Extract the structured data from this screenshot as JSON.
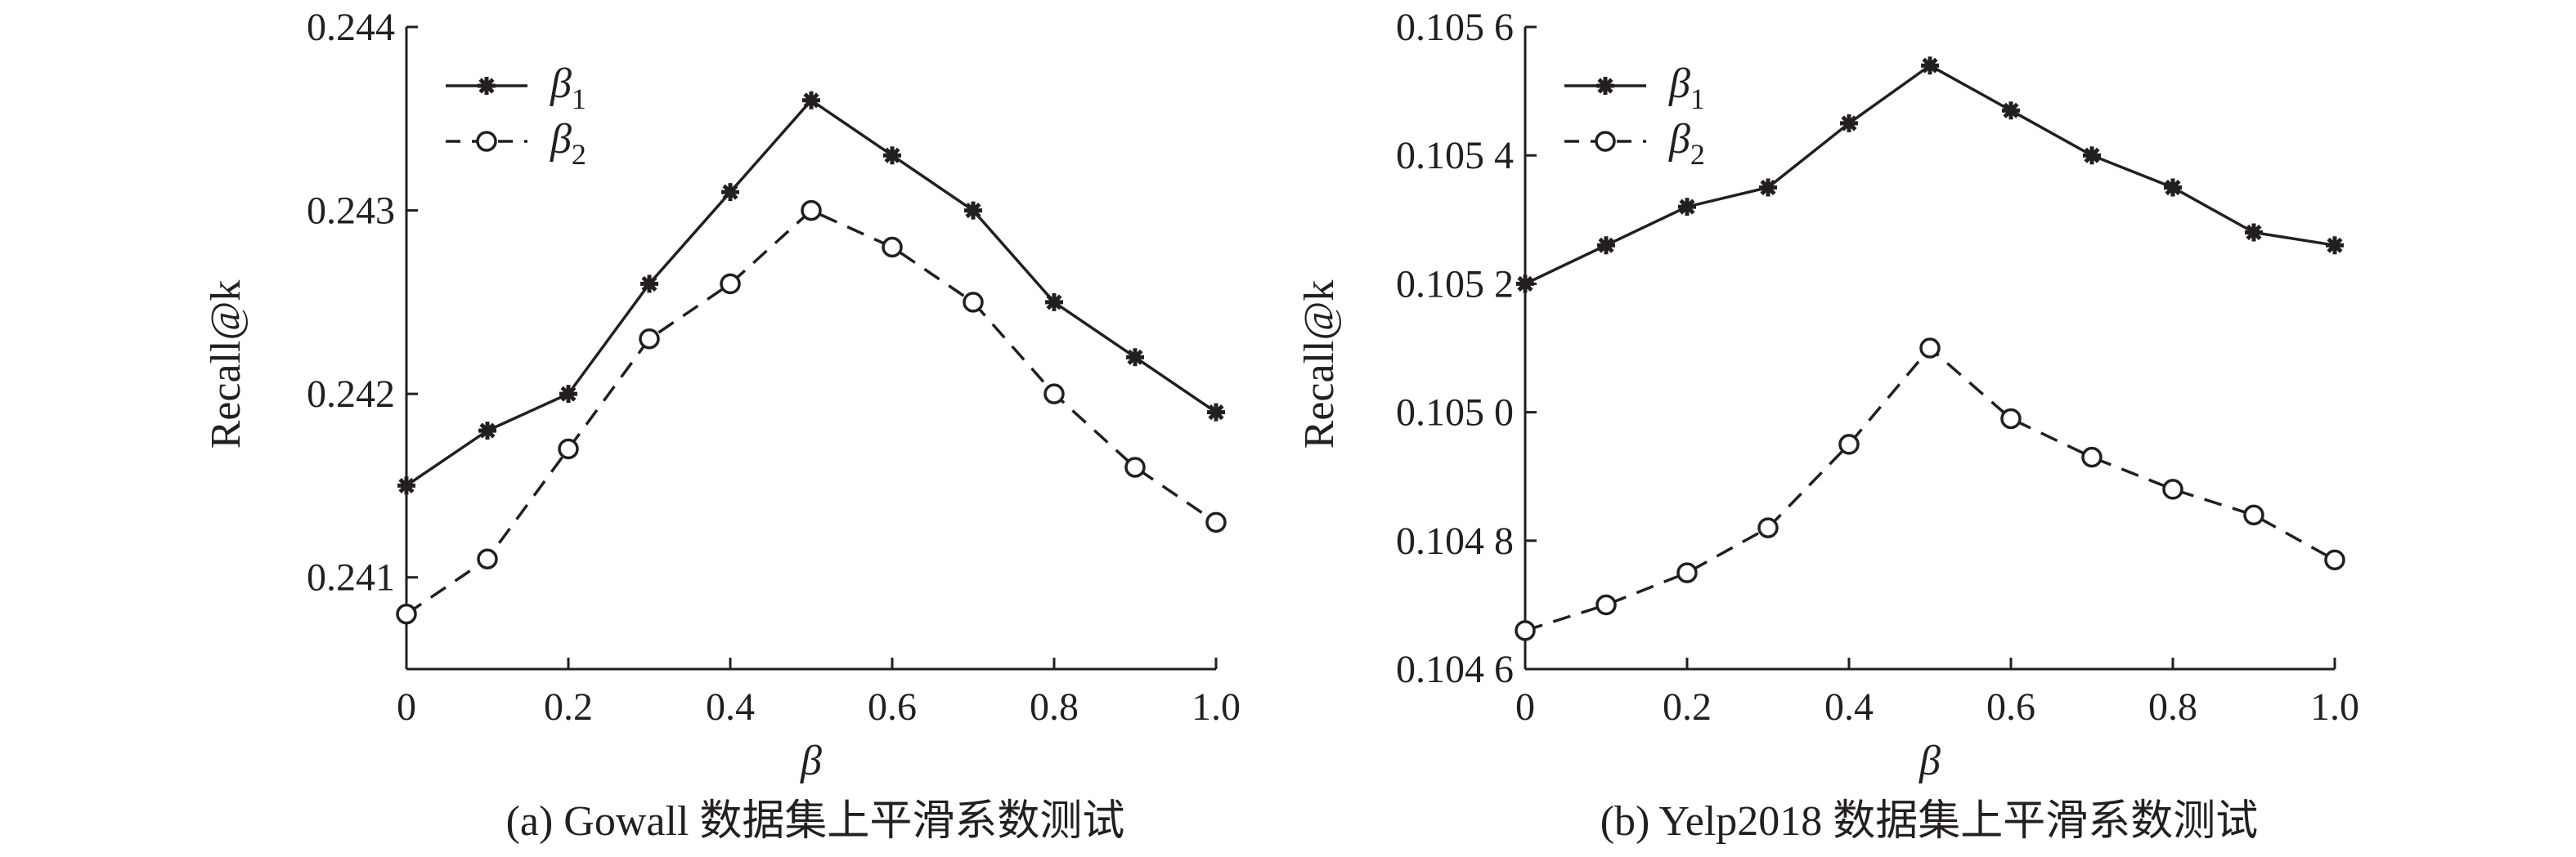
{
  "chart_data": [
    {
      "type": "line",
      "caption": "(a) Gowall 数据集上平滑系数测试",
      "xlabel": "β",
      "ylabel": "Recall@k",
      "x": [
        0,
        0.1,
        0.2,
        0.3,
        0.4,
        0.5,
        0.6,
        0.7,
        0.8,
        0.9,
        1.0
      ],
      "xticks": [
        0,
        0.2,
        0.4,
        0.6,
        0.8,
        1.0
      ],
      "xtick_labels": [
        "0",
        "0.2",
        "0.4",
        "0.6",
        "0.8",
        "1.0"
      ],
      "xlim": [
        0,
        1.0
      ],
      "ylim": [
        0.2405,
        0.244
      ],
      "yticks": [
        0.241,
        0.242,
        0.243,
        0.244
      ],
      "ytick_labels": [
        "0.241",
        "0.242",
        "0.243",
        "0.244"
      ],
      "legend_position": "top-left",
      "grid": false,
      "series": [
        {
          "name": "β",
          "subscript": "1",
          "style": "solid",
          "marker": "star",
          "values": [
            0.2415,
            0.2418,
            0.242,
            0.2426,
            0.2431,
            0.2436,
            0.2433,
            0.243,
            0.2425,
            0.2422,
            0.2419
          ]
        },
        {
          "name": "β",
          "subscript": "2",
          "style": "dashed",
          "marker": "circle",
          "values": [
            0.2408,
            0.2411,
            0.2417,
            0.2423,
            0.2426,
            0.243,
            0.2428,
            0.2425,
            0.242,
            0.2416,
            0.2413
          ]
        }
      ]
    },
    {
      "type": "line",
      "caption": "(b) Yelp2018 数据集上平滑系数测试",
      "xlabel": "β",
      "ylabel": "Recall@k",
      "x": [
        0,
        0.1,
        0.2,
        0.3,
        0.4,
        0.5,
        0.6,
        0.7,
        0.8,
        0.9,
        1.0
      ],
      "xticks": [
        0,
        0.2,
        0.4,
        0.6,
        0.8,
        1.0
      ],
      "xtick_labels": [
        "0",
        "0.2",
        "0.4",
        "0.6",
        "0.8",
        "1.0"
      ],
      "xlim": [
        0,
        1.0
      ],
      "ylim": [
        0.1046,
        0.1056
      ],
      "yticks": [
        0.1046,
        0.1048,
        0.105,
        0.1052,
        0.1054,
        0.1056
      ],
      "ytick_labels": [
        "0.104 6",
        "0.104 8",
        "0.105 0",
        "0.105 2",
        "0.105 4",
        "0.105 6"
      ],
      "legend_position": "top-left",
      "grid": false,
      "series": [
        {
          "name": "β",
          "subscript": "1",
          "style": "solid",
          "marker": "star",
          "values": [
            0.1052,
            0.10526,
            0.10532,
            0.10535,
            0.10545,
            0.10554,
            0.10547,
            0.1054,
            0.10535,
            0.10528,
            0.10526
          ]
        },
        {
          "name": "β",
          "subscript": "2",
          "style": "dashed",
          "marker": "circle",
          "values": [
            0.10466,
            0.1047,
            0.10475,
            0.10482,
            0.10495,
            0.1051,
            0.10499,
            0.10493,
            0.10488,
            0.10484,
            0.10477
          ]
        }
      ]
    }
  ]
}
